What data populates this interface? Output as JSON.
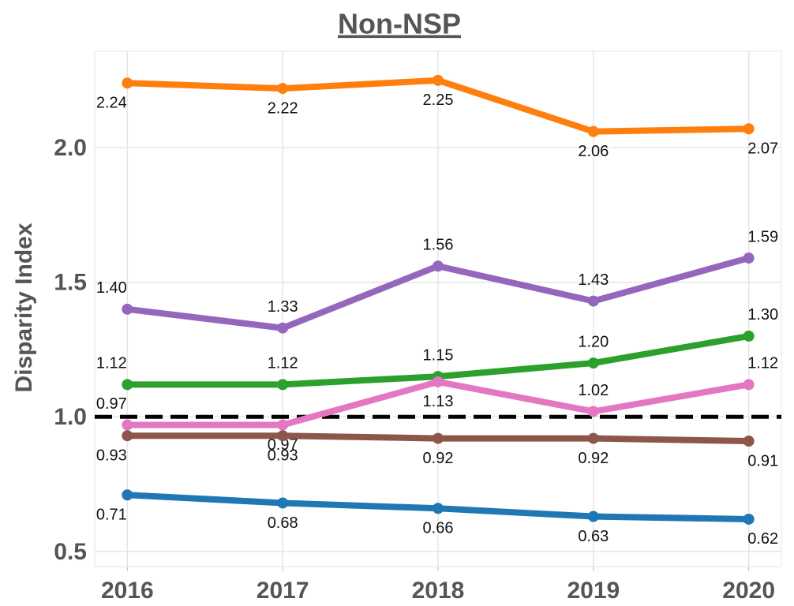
{
  "chart_data": {
    "type": "line",
    "title": "Non-NSP",
    "ylabel": "Disparity Index",
    "x": [
      2016,
      2017,
      2018,
      2019,
      2020
    ],
    "xlim": [
      2015.79,
      2020.21
    ],
    "xticks": [
      2016,
      2017,
      2018,
      2019,
      2020
    ],
    "ylim": [
      0.444,
      2.358
    ],
    "yticks": [
      {
        "value": 0.5,
        "label": "0.5"
      },
      {
        "value": 1,
        "label": "1.0"
      },
      {
        "value": 1.5,
        "label": "1.5"
      },
      {
        "value": 2,
        "label": "2.0"
      }
    ],
    "grid": true,
    "hline": 1,
    "series": [
      {
        "color": "#ff7f0e",
        "values": [
          2.24,
          2.22,
          2.25,
          2.06,
          2.07
        ],
        "value_labels": [
          "2.24",
          "2.22",
          "2.25",
          "2.06",
          "2.07"
        ]
      },
      {
        "color": "#9467bd",
        "values": [
          1.4,
          1.33,
          1.56,
          1.43,
          1.59
        ],
        "value_labels": [
          "1.40",
          "1.33",
          "1.56",
          "1.43",
          "1.59"
        ]
      },
      {
        "color": "#2ca02c",
        "values": [
          1.12,
          1.12,
          1.15,
          1.2,
          1.3
        ],
        "value_labels": [
          "1.12",
          "1.12",
          "1.15",
          "1.20",
          "1.30"
        ]
      },
      {
        "color": "#e377c2",
        "values": [
          0.97,
          0.97,
          1.13,
          1.02,
          1.12
        ],
        "value_labels": [
          "0.97",
          "0.97",
          "1.13",
          "1.02",
          "1.12"
        ]
      },
      {
        "color": "#8c564b",
        "values": [
          0.93,
          0.93,
          0.92,
          0.92,
          0.91
        ],
        "value_labels": [
          "0.93",
          "0.93",
          "0.92",
          "0.92",
          "0.91"
        ]
      },
      {
        "color": "#1f77b4",
        "values": [
          0.71,
          0.68,
          0.66,
          0.63,
          0.62
        ],
        "value_labels": [
          "0.71",
          "0.68",
          "0.66",
          "0.63",
          "0.62"
        ]
      }
    ]
  }
}
